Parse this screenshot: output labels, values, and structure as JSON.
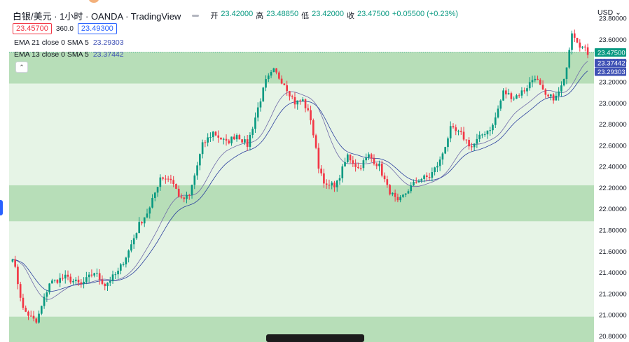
{
  "header": {
    "title": "白银/美元 · 1小时 · OANDA · TradingView",
    "ohlc": {
      "open_label": "开",
      "open": "23.42000",
      "high_label": "高",
      "high": "23.48850",
      "low_label": "低",
      "low": "23.42000",
      "close_label": "收",
      "close": "23.47500",
      "change": "+0.05500 (+0.23%)"
    }
  },
  "trade": {
    "sell": "23.45700",
    "spread": "360.0",
    "buy": "23.49300"
  },
  "indicators": [
    {
      "label": "EMA 21 close 0 SMA 5",
      "value": "23.29303",
      "color": "#3f51b5"
    },
    {
      "label": "EMA 13 close 0 SMA 5",
      "value": "23.37442",
      "color": "#7a6fb0"
    }
  ],
  "currency": "USD",
  "colors": {
    "up": "#089981",
    "down": "#f23645",
    "zone_light": "#e6f4e6",
    "zone_dark": "#b7deb8",
    "last_price_tag": "#089981",
    "ema_tag": "#3f51b5"
  },
  "chart_data": {
    "type": "candlestick",
    "y_ticks": [
      "23.80000",
      "23.60000",
      "23.40000",
      "23.20000",
      "23.00000",
      "22.80000",
      "22.60000",
      "22.40000",
      "22.20000",
      "22.00000",
      "21.80000",
      "21.60000",
      "21.40000",
      "21.20000",
      "21.00000",
      "20.80000"
    ],
    "ylim": [
      20.74,
      23.97
    ],
    "last_price": "23.47500",
    "ema13_last": "23.37442",
    "ema21_last": "23.29303",
    "zones": [
      {
        "from": 23.18,
        "to": 23.48,
        "shade": "dark"
      },
      {
        "from": 22.22,
        "to": 23.18,
        "shade": "light"
      },
      {
        "from": 21.88,
        "to": 22.22,
        "shade": "dark"
      },
      {
        "from": 20.98,
        "to": 21.88,
        "shade": "light"
      },
      {
        "from": 20.74,
        "to": 20.98,
        "shade": "dark"
      }
    ],
    "price_anchors": [
      [
        0,
        21.55
      ],
      [
        4,
        21.05
      ],
      [
        9,
        20.92
      ],
      [
        14,
        21.3
      ],
      [
        20,
        21.35
      ],
      [
        26,
        21.28
      ],
      [
        31,
        21.4
      ],
      [
        35,
        21.28
      ],
      [
        40,
        21.4
      ],
      [
        44,
        21.6
      ],
      [
        48,
        21.85
      ],
      [
        52,
        22.0
      ],
      [
        56,
        22.3
      ],
      [
        60,
        22.28
      ],
      [
        64,
        22.08
      ],
      [
        67,
        22.12
      ],
      [
        72,
        22.6
      ],
      [
        76,
        22.72
      ],
      [
        81,
        22.62
      ],
      [
        85,
        22.7
      ],
      [
        89,
        22.6
      ],
      [
        93,
        22.95
      ],
      [
        96,
        23.2
      ],
      [
        99,
        23.3
      ],
      [
        103,
        23.18
      ],
      [
        107,
        23.0
      ],
      [
        110,
        23.02
      ],
      [
        113,
        22.85
      ],
      [
        116,
        22.4
      ],
      [
        119,
        22.2
      ],
      [
        123,
        22.24
      ],
      [
        127,
        22.5
      ],
      [
        131,
        22.38
      ],
      [
        135,
        22.5
      ],
      [
        139,
        22.4
      ],
      [
        142,
        22.2
      ],
      [
        146,
        22.05
      ],
      [
        150,
        22.18
      ],
      [
        154,
        22.28
      ],
      [
        158,
        22.3
      ],
      [
        162,
        22.45
      ],
      [
        166,
        22.75
      ],
      [
        170,
        22.7
      ],
      [
        174,
        22.58
      ],
      [
        178,
        22.7
      ],
      [
        182,
        22.78
      ],
      [
        186,
        23.1
      ],
      [
        190,
        23.05
      ],
      [
        194,
        23.12
      ],
      [
        198,
        23.25
      ],
      [
        202,
        23.05
      ],
      [
        206,
        23.05
      ],
      [
        209,
        23.2
      ],
      [
        212,
        23.68
      ],
      [
        215,
        23.55
      ],
      [
        218,
        23.47
      ]
    ]
  }
}
